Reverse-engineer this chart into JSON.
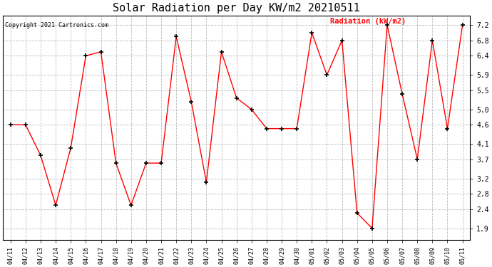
{
  "title": "Solar Radiation per Day KW/m2 20210511",
  "copyright": "Copyright 2021 Cartronics.com",
  "dates": [
    "04/11",
    "04/12",
    "04/13",
    "04/14",
    "04/15",
    "04/16",
    "04/17",
    "04/18",
    "04/19",
    "04/20",
    "04/21",
    "04/22",
    "04/23",
    "04/24",
    "04/25",
    "04/26",
    "04/27",
    "04/28",
    "04/29",
    "04/30",
    "05/01",
    "05/02",
    "05/03",
    "05/04",
    "05/05",
    "05/06",
    "05/07",
    "05/08",
    "05/09",
    "05/10",
    "05/11"
  ],
  "values": [
    4.6,
    4.6,
    3.8,
    2.5,
    4.0,
    6.4,
    6.5,
    3.6,
    2.5,
    3.6,
    3.6,
    6.9,
    5.2,
    3.1,
    6.5,
    5.3,
    5.0,
    4.5,
    4.5,
    4.5,
    7.0,
    5.9,
    6.8,
    2.3,
    1.9,
    7.2,
    5.4,
    3.7,
    6.8,
    4.5,
    7.2
  ],
  "line_color": "red",
  "marker": "+",
  "marker_color": "black",
  "grid_color": "#bbbbbb",
  "bg_color": "#ffffff",
  "yticks": [
    1.9,
    2.4,
    2.8,
    3.2,
    3.7,
    4.1,
    4.6,
    5.0,
    5.5,
    5.9,
    6.4,
    6.8,
    7.2
  ],
  "ymin": 1.6,
  "ymax": 7.45,
  "title_fontsize": 11,
  "tick_fontsize": 6,
  "copyright_fontsize": 6,
  "legend_fontsize": 7.5
}
